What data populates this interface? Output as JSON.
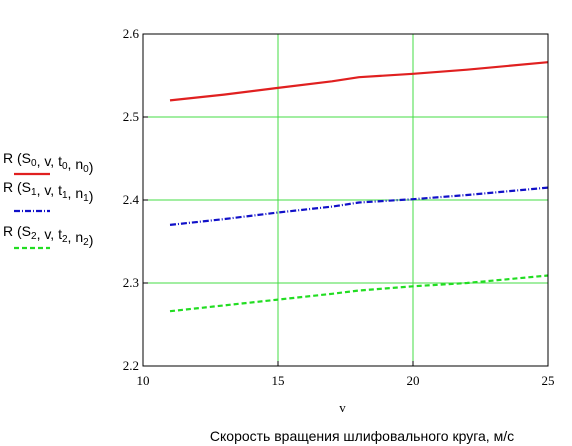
{
  "chart_data": {
    "type": "line",
    "xlabel": "v",
    "caption": "Скорость вращения шлифовального круга, м/с",
    "xlim": [
      10,
      25
    ],
    "ylim": [
      2.2,
      2.6
    ],
    "x_ticks": [
      "10",
      "15",
      "20",
      "25"
    ],
    "y_ticks": [
      "2.2",
      "2.3",
      "2.4",
      "2.5",
      "2.6"
    ],
    "grid": true,
    "legend_position": "left",
    "series": [
      {
        "legend": [
          {
            "t": "R (S"
          },
          {
            "t": "0",
            "sub": true
          },
          {
            "t": ", v, t"
          },
          {
            "t": "0",
            "sub": true
          },
          {
            "t": ", n"
          },
          {
            "t": "0",
            "sub": true
          },
          {
            "t": ")"
          }
        ],
        "color": "#e02020",
        "style": "solid",
        "x": [
          11,
          13,
          15,
          17,
          18,
          20,
          22,
          25
        ],
        "y": [
          2.52,
          2.527,
          2.535,
          2.543,
          2.548,
          2.552,
          2.557,
          2.566
        ]
      },
      {
        "legend": [
          {
            "t": "R (S"
          },
          {
            "t": "1",
            "sub": true
          },
          {
            "t": ", v, t"
          },
          {
            "t": "1",
            "sub": true
          },
          {
            "t": ", n"
          },
          {
            "t": "1",
            "sub": true
          },
          {
            "t": ")"
          }
        ],
        "color": "#1010c8",
        "style": "dashdot",
        "x": [
          11,
          13,
          15,
          17,
          18,
          20,
          22,
          25
        ],
        "y": [
          2.37,
          2.377,
          2.385,
          2.392,
          2.397,
          2.401,
          2.406,
          2.415
        ]
      },
      {
        "legend": [
          {
            "t": "R (S"
          },
          {
            "t": "2",
            "sub": true
          },
          {
            "t": ", v, t"
          },
          {
            "t": "2",
            "sub": true
          },
          {
            "t": ", n"
          },
          {
            "t": "2",
            "sub": true
          },
          {
            "t": ")"
          }
        ],
        "color": "#22dd22",
        "style": "dashed",
        "x": [
          11,
          13,
          15,
          17,
          18,
          20,
          22,
          25
        ],
        "y": [
          2.266,
          2.273,
          2.28,
          2.287,
          2.291,
          2.296,
          2.3,
          2.309
        ]
      }
    ]
  }
}
